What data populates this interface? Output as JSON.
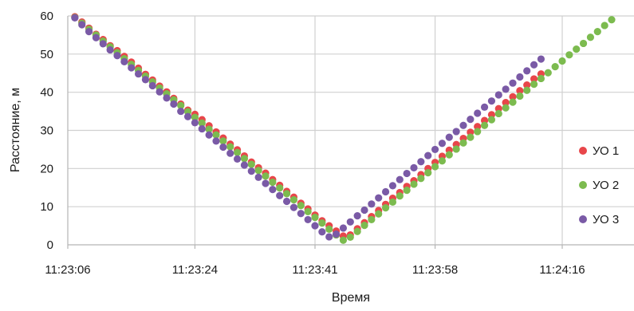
{
  "chart_data": {
    "type": "scatter",
    "xlabel": "Время",
    "ylabel": "Расстояние, м",
    "ylim": [
      0,
      60
    ],
    "y_ticks": [
      "0",
      "10",
      "20",
      "30",
      "40",
      "50",
      "60"
    ],
    "x_ticks": [
      "11:23:06",
      "11:23:24",
      "11:23:41",
      "11:23:58",
      "11:24:16"
    ],
    "grid": true,
    "legend_position": "right",
    "series": [
      {
        "name": "УО 1",
        "color": "#e8464a",
        "x": [
          "11:23:07",
          "11:23:08",
          "11:23:09",
          "11:23:10",
          "11:23:11",
          "11:23:12",
          "11:23:13",
          "11:23:14",
          "11:23:15",
          "11:23:16",
          "11:23:17",
          "11:23:18",
          "11:23:19",
          "11:23:20",
          "11:23:21",
          "11:23:22",
          "11:23:23",
          "11:23:24",
          "11:23:25",
          "11:23:26",
          "11:23:27",
          "11:23:28",
          "11:23:29",
          "11:23:30",
          "11:23:31",
          "11:23:32",
          "11:23:33",
          "11:23:34",
          "11:23:35",
          "11:23:36",
          "11:23:37",
          "11:23:38",
          "11:23:39",
          "11:23:40",
          "11:23:41",
          "11:23:42",
          "11:23:43",
          "11:23:44",
          "11:23:45",
          "11:23:46",
          "11:23:47",
          "11:23:48",
          "11:23:49",
          "11:23:50",
          "11:23:51",
          "11:23:52",
          "11:23:53",
          "11:23:54",
          "11:23:55",
          "11:23:56",
          "11:23:57",
          "11:23:58",
          "11:23:59",
          "11:24:00",
          "11:24:01",
          "11:24:02",
          "11:24:03",
          "11:24:04",
          "11:24:05",
          "11:24:06",
          "11:24:07",
          "11:24:08",
          "11:24:09",
          "11:24:10",
          "11:24:11",
          "11:24:12",
          "11:24:13"
        ],
        "y": [
          59.8,
          58.4,
          56.8,
          55.2,
          53.8,
          52.2,
          50.9,
          49.4,
          47.9,
          46.3,
          44.7,
          43.2,
          41.6,
          40.1,
          38.4,
          36.9,
          35.3,
          34.2,
          32.8,
          31.2,
          29.6,
          28.0,
          26.4,
          24.9,
          23.3,
          21.7,
          20.2,
          18.8,
          17.1,
          15.6,
          14.0,
          12.5,
          10.9,
          9.4,
          7.8,
          6.3,
          5.0,
          3.6,
          2.3,
          2.6,
          4.2,
          5.8,
          7.4,
          9.0,
          10.6,
          12.2,
          13.7,
          15.3,
          16.8,
          18.4,
          20.0,
          21.6,
          23.2,
          24.8,
          26.3,
          27.9,
          29.5,
          31.0,
          32.6,
          34.1,
          35.7,
          37.3,
          38.8,
          40.4,
          41.9,
          43.5,
          44.8
        ]
      },
      {
        "name": "УО 2",
        "color": "#7cbb4f",
        "x": [
          "11:23:07",
          "11:23:08",
          "11:23:09",
          "11:23:10",
          "11:23:11",
          "11:23:12",
          "11:23:13",
          "11:23:14",
          "11:23:15",
          "11:23:16",
          "11:23:17",
          "11:23:18",
          "11:23:19",
          "11:23:20",
          "11:23:21",
          "11:23:22",
          "11:23:23",
          "11:23:24",
          "11:23:25",
          "11:23:26",
          "11:23:27",
          "11:23:28",
          "11:23:29",
          "11:23:30",
          "11:23:31",
          "11:23:32",
          "11:23:33",
          "11:23:34",
          "11:23:35",
          "11:23:36",
          "11:23:37",
          "11:23:38",
          "11:23:39",
          "11:23:40",
          "11:23:41",
          "11:23:42",
          "11:23:43",
          "11:23:44",
          "11:23:45",
          "11:23:46",
          "11:23:47",
          "11:23:48",
          "11:23:49",
          "11:23:50",
          "11:23:51",
          "11:23:52",
          "11:23:53",
          "11:23:54",
          "11:23:55",
          "11:23:56",
          "11:23:57",
          "11:23:58",
          "11:23:59",
          "11:24:00",
          "11:24:01",
          "11:24:02",
          "11:24:03",
          "11:24:04",
          "11:24:05",
          "11:24:06",
          "11:24:07",
          "11:24:08",
          "11:24:09",
          "11:24:10",
          "11:24:11",
          "11:24:12",
          "11:24:13",
          "11:24:14",
          "11:24:15",
          "11:24:16",
          "11:24:17",
          "11:24:18",
          "11:24:19",
          "11:24:20",
          "11:24:21",
          "11:24:22",
          "11:24:23"
        ],
        "y": [
          59.6,
          58.1,
          56.5,
          55.0,
          53.4,
          51.9,
          50.4,
          48.8,
          47.3,
          45.7,
          44.2,
          42.7,
          41.1,
          39.6,
          38.0,
          36.5,
          34.9,
          33.4,
          31.9,
          30.3,
          28.8,
          27.2,
          25.7,
          24.2,
          22.6,
          21.1,
          19.5,
          18.0,
          16.4,
          14.9,
          13.4,
          11.8,
          10.3,
          8.7,
          7.2,
          5.7,
          4.1,
          2.6,
          1.2,
          2.0,
          3.5,
          5.1,
          6.6,
          8.1,
          9.7,
          11.2,
          12.8,
          14.3,
          15.9,
          17.4,
          18.9,
          20.5,
          22.0,
          23.6,
          25.1,
          26.7,
          28.2,
          29.7,
          31.3,
          32.8,
          34.4,
          35.9,
          37.4,
          39.0,
          40.5,
          42.1,
          43.6,
          45.1,
          46.7,
          48.2,
          49.8,
          51.3,
          52.8,
          54.4,
          55.9,
          57.5,
          59.0
        ]
      },
      {
        "name": "УО 3",
        "color": "#7a5aa6",
        "x": [
          "11:23:07",
          "11:23:08",
          "11:23:09",
          "11:23:10",
          "11:23:11",
          "11:23:12",
          "11:23:13",
          "11:23:14",
          "11:23:15",
          "11:23:16",
          "11:23:17",
          "11:23:18",
          "11:23:19",
          "11:23:20",
          "11:23:21",
          "11:23:22",
          "11:23:23",
          "11:23:24",
          "11:23:25",
          "11:23:26",
          "11:23:27",
          "11:23:28",
          "11:23:29",
          "11:23:30",
          "11:23:31",
          "11:23:32",
          "11:23:33",
          "11:23:34",
          "11:23:35",
          "11:23:36",
          "11:23:37",
          "11:23:38",
          "11:23:39",
          "11:23:40",
          "11:23:41",
          "11:23:42",
          "11:23:43",
          "11:23:44",
          "11:23:45",
          "11:23:46",
          "11:23:47",
          "11:23:48",
          "11:23:49",
          "11:23:50",
          "11:23:51",
          "11:23:52",
          "11:23:53",
          "11:23:54",
          "11:23:55",
          "11:23:56",
          "11:23:57",
          "11:23:58",
          "11:23:59",
          "11:24:00",
          "11:24:01",
          "11:24:02",
          "11:24:03",
          "11:24:04",
          "11:24:05",
          "11:24:06",
          "11:24:07",
          "11:24:08",
          "11:24:09",
          "11:24:10",
          "11:24:11",
          "11:24:12",
          "11:24:13"
        ],
        "y": [
          59.5,
          57.7,
          55.9,
          54.3,
          52.7,
          51.1,
          49.6,
          48.0,
          46.4,
          44.8,
          43.3,
          41.7,
          40.1,
          38.5,
          36.9,
          35.0,
          33.6,
          32.0,
          30.4,
          28.8,
          27.2,
          25.6,
          24.0,
          22.5,
          20.9,
          19.3,
          17.7,
          16.1,
          14.5,
          12.9,
          11.4,
          9.8,
          8.2,
          6.6,
          5.0,
          3.4,
          2.1,
          2.8,
          4.4,
          6.0,
          7.6,
          9.1,
          10.7,
          12.3,
          13.9,
          15.5,
          17.1,
          18.7,
          20.2,
          21.8,
          23.4,
          25.0,
          26.6,
          28.2,
          29.7,
          31.3,
          32.9,
          34.5,
          36.1,
          37.7,
          39.3,
          40.8,
          42.4,
          44.0,
          45.6,
          47.2,
          48.7
        ]
      }
    ]
  }
}
